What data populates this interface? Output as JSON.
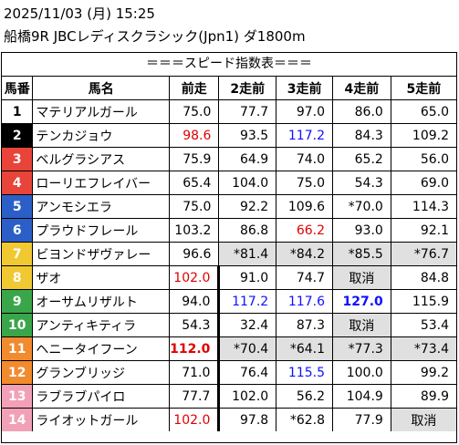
{
  "header": {
    "line1": "2025/11/03 (月) 15:25",
    "line2": "船橋9R JBCレディスクラシック(Jpn1) ダ1800m"
  },
  "table": {
    "caption": "＝＝＝スピード指数表＝＝＝",
    "columns": [
      "馬番",
      "馬名",
      "前走",
      "2走前",
      "3走前",
      "4走前",
      "5走前"
    ],
    "rows": [
      {
        "num": "1",
        "name": "マテリアルガール",
        "v": [
          "75.0",
          "77.7",
          "97.0",
          "86.0",
          "65.0"
        ]
      },
      {
        "num": "2",
        "name": "テンカジョウ",
        "v": [
          "98.6",
          "93.5",
          "117.2",
          "84.3",
          "109.2"
        ]
      },
      {
        "num": "3",
        "name": "ベルグラシアス",
        "v": [
          "75.9",
          "64.9",
          "74.0",
          "65.2",
          "56.0"
        ]
      },
      {
        "num": "4",
        "name": "ローリエフレイバー",
        "v": [
          "65.4",
          "104.0",
          "75.0",
          "54.3",
          "69.0"
        ]
      },
      {
        "num": "5",
        "name": "アンモシエラ",
        "v": [
          "75.0",
          "92.2",
          "109.6",
          "*70.0",
          "114.3"
        ]
      },
      {
        "num": "6",
        "name": "プラウドフレール",
        "v": [
          "103.2",
          "86.8",
          "66.2",
          "93.0",
          "92.1"
        ]
      },
      {
        "num": "7",
        "name": "ビヨンドザヴァレー",
        "v": [
          "96.6",
          "*81.4",
          "*84.2",
          "*85.5",
          "*76.7"
        ]
      },
      {
        "num": "8",
        "name": "ザオ",
        "v": [
          "102.0",
          "91.0",
          "74.7",
          "取消",
          "84.8"
        ]
      },
      {
        "num": "9",
        "name": "オーサムリザルト",
        "v": [
          "94.0",
          "117.2",
          "117.6",
          "127.0",
          "115.9"
        ]
      },
      {
        "num": "10",
        "name": "アンティキティラ",
        "v": [
          "54.3",
          "32.4",
          "87.3",
          "取消",
          "53.4"
        ]
      },
      {
        "num": "11",
        "name": "ヘニータイフーン",
        "v": [
          "112.0",
          "*70.4",
          "*64.1",
          "*77.3",
          "*73.4"
        ]
      },
      {
        "num": "12",
        "name": "グランブリッジ",
        "v": [
          "71.0",
          "76.4",
          "115.5",
          "100.0",
          "99.2"
        ]
      },
      {
        "num": "13",
        "name": "ラブラブパイロ",
        "v": [
          "77.7",
          "102.0",
          "56.2",
          "104.9",
          "89.9"
        ]
      },
      {
        "num": "14",
        "name": "ライオットガール",
        "v": [
          "102.0",
          "97.8",
          "*62.8",
          "77.9",
          "取消"
        ]
      }
    ]
  },
  "colors": {
    "waku": [
      "#ffffff",
      "#000000",
      "#e8443a",
      "#2b5fc7",
      "#f0c832",
      "#3aa64a",
      "#f28a2e",
      "#f2a0b8"
    ],
    "red_value": "#e00000",
    "blue_value": "#1010ff",
    "shade": "#e0e0e0"
  }
}
